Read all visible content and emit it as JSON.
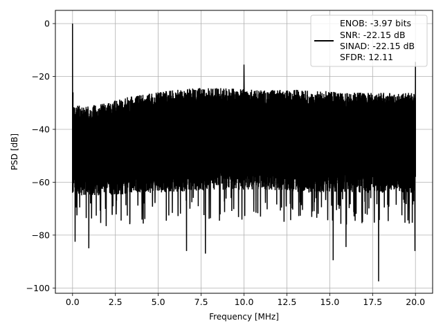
{
  "chart_data": {
    "type": "line",
    "xlabel": "Frequency [MHz]",
    "ylabel": "PSD [dB]",
    "xlim": [
      -1.0,
      21.0
    ],
    "ylim": [
      -102.0,
      5.0
    ],
    "xticks": [
      0.0,
      2.5,
      5.0,
      7.5,
      10.0,
      12.5,
      15.0,
      17.5,
      20.0
    ],
    "xtick_labels": [
      "0.0",
      "2.5",
      "5.0",
      "7.5",
      "10.0",
      "12.5",
      "15.0",
      "17.5",
      "20.0"
    ],
    "yticks": [
      0,
      -20,
      -40,
      -60,
      -80,
      -100
    ],
    "ytick_labels": [
      "0",
      "−20",
      "−40",
      "−60",
      "−80",
      "−100"
    ],
    "grid": true,
    "legend_position": "upper-right",
    "line_color": "#000000",
    "grid_color": "#b0b0b0",
    "series": [
      {
        "name": "ENOB: -3.97 bits\nSNR: -22.15 dB\nSINAD: -22.15 dB\nSFDR: 12.11",
        "legend_lines": [
          "ENOB: -3.97 bits",
          "SNR: -22.15 dB",
          "SINAD: -22.15 dB",
          "SFDR: 12.11"
        ],
        "description": "dense noise floor spanning about -65 to -30 dB across 0-20 MHz, top rising gradually from about -32 dB near 0 MHz to about -26 dB near 8 MHz",
        "peaks": [
          {
            "x": 0.0,
            "y": 0.0
          },
          {
            "x": 10.0,
            "y": -15.5
          },
          {
            "x": 20.0,
            "y": -14.5
          }
        ],
        "notable_dips": [
          {
            "x": 0.15,
            "y": -82.5
          },
          {
            "x": 0.95,
            "y": -85.0
          },
          {
            "x": 6.65,
            "y": -86.0
          },
          {
            "x": 7.75,
            "y": -87.0
          },
          {
            "x": 15.2,
            "y": -89.5
          },
          {
            "x": 15.95,
            "y": -84.5
          },
          {
            "x": 17.85,
            "y": -97.5
          },
          {
            "x": 19.97,
            "y": -86.0
          }
        ],
        "upper_envelope": [
          {
            "x": 0.1,
            "y": -31
          },
          {
            "x": 1,
            "y": -31
          },
          {
            "x": 2,
            "y": -30
          },
          {
            "x": 3,
            "y": -28
          },
          {
            "x": 4,
            "y": -27
          },
          {
            "x": 5,
            "y": -26
          },
          {
            "x": 6,
            "y": -25
          },
          {
            "x": 7,
            "y": -24.5
          },
          {
            "x": 8,
            "y": -24
          },
          {
            "x": 9,
            "y": -24.5
          },
          {
            "x": 10.5,
            "y": -25
          },
          {
            "x": 12,
            "y": -25
          },
          {
            "x": 13,
            "y": -25
          },
          {
            "x": 14,
            "y": -25.5
          },
          {
            "x": 15,
            "y": -25.5
          },
          {
            "x": 16,
            "y": -26
          },
          {
            "x": 17,
            "y": -26
          },
          {
            "x": 18,
            "y": -26
          },
          {
            "x": 19,
            "y": -26.5
          },
          {
            "x": 19.9,
            "y": -26
          }
        ],
        "lower_envelope": [
          {
            "x": 0.1,
            "y": -65
          },
          {
            "x": 2,
            "y": -65
          },
          {
            "x": 5,
            "y": -64
          },
          {
            "x": 8,
            "y": -63
          },
          {
            "x": 11,
            "y": -63
          },
          {
            "x": 14,
            "y": -64
          },
          {
            "x": 17,
            "y": -64
          },
          {
            "x": 19.9,
            "y": -64
          }
        ]
      }
    ]
  }
}
